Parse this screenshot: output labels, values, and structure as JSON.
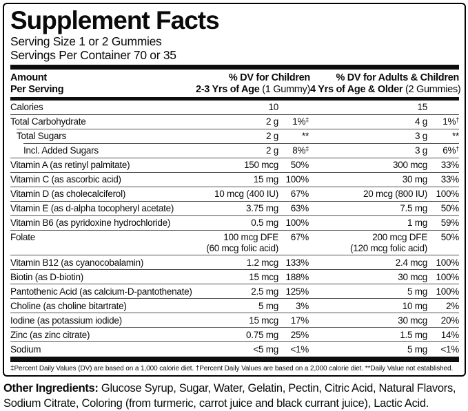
{
  "label": {
    "title": "Supplement Facts",
    "serving_size": "Serving Size 1 or 2 Gummies",
    "servings_per_container": "Servings Per Container 70 or 35",
    "header": {
      "col1_line1": "Amount",
      "col1_line2": "Per Serving",
      "col2_line1": "% DV for Children",
      "col2_line2_bold": "2-3 Yrs of Age",
      "col2_line2_reg": " (1 Gummy)",
      "col3_line1": "% DV for Adults & Children",
      "col3_line2_bold": "4 Yrs of Age & Older",
      "col3_line2_reg": " (2 Gummies)"
    },
    "rows": [
      {
        "name": "Calories",
        "a1": "10",
        "a1b": "",
        "p1": "",
        "s1": "",
        "a2": "15",
        "a2b": "",
        "p2": "",
        "s2": ""
      },
      {
        "name": "Total Carbohydrate",
        "a1": "2 g",
        "a1b": "",
        "p1": "1%",
        "s1": "‡",
        "a2": "4 g",
        "a2b": "",
        "p2": "1%",
        "s2": "†"
      },
      {
        "name": "Total Sugars",
        "a1": "2 g",
        "a1b": "",
        "p1": "**",
        "s1": "",
        "a2": "3 g",
        "a2b": "",
        "p2": "**",
        "s2": ""
      },
      {
        "name": "Incl. Added Sugars",
        "a1": "2 g",
        "a1b": "",
        "p1": "8%",
        "s1": "‡",
        "a2": "3 g",
        "a2b": "",
        "p2": "6%",
        "s2": "†"
      },
      {
        "name": "Vitamin A (as retinyl palmitate)",
        "a1": "150 mcg",
        "a1b": "",
        "p1": "50%",
        "s1": "",
        "a2": "300 mcg",
        "a2b": "",
        "p2": "33%",
        "s2": ""
      },
      {
        "name": "Vitamin C (as ascorbic acid)",
        "a1": "15 mg",
        "a1b": "",
        "p1": "100%",
        "s1": "",
        "a2": "30 mg",
        "a2b": "",
        "p2": "33%",
        "s2": ""
      },
      {
        "name": "Vitamin D (as cholecalciferol)",
        "a1": "10 mcg (400 IU)",
        "a1b": "",
        "p1": "67%",
        "s1": "",
        "a2": "20 mcg (800 IU)",
        "a2b": "",
        "p2": "100%",
        "s2": ""
      },
      {
        "name": "Vitamin E (as d-alpha tocopheryl acetate)",
        "a1": "3.75 mg",
        "a1b": "",
        "p1": "63%",
        "s1": "",
        "a2": "7.5 mg",
        "a2b": "",
        "p2": "50%",
        "s2": ""
      },
      {
        "name": "Vitamin B6 (as pyridoxine hydrochloride)",
        "a1": "0.5 mg",
        "a1b": "",
        "p1": "100%",
        "s1": "",
        "a2": "1 mg",
        "a2b": "",
        "p2": "59%",
        "s2": ""
      },
      {
        "name": "Folate",
        "a1": "100 mcg DFE",
        "a1b": "(60 mcg folic acid)",
        "p1": "67%",
        "s1": "",
        "a2": "200 mcg DFE",
        "a2b": "(120 mcg folic acid)",
        "p2": "50%",
        "s2": ""
      },
      {
        "name": "Vitamin B12 (as cyanocobalamin)",
        "a1": "1.2 mcg",
        "a1b": "",
        "p1": "133%",
        "s1": "",
        "a2": "2.4 mcg",
        "a2b": "",
        "p2": "100%",
        "s2": ""
      },
      {
        "name": "Biotin (as D-biotin)",
        "a1": "15 mcg",
        "a1b": "",
        "p1": "188%",
        "s1": "",
        "a2": "30 mcg",
        "a2b": "",
        "p2": "100%",
        "s2": ""
      },
      {
        "name": "Pantothenic Acid (as calcium-D-pantothenate)",
        "a1": "2.5 mg",
        "a1b": "",
        "p1": "125%",
        "s1": "",
        "a2": "5 mg",
        "a2b": "",
        "p2": "100%",
        "s2": ""
      },
      {
        "name": "Choline (as choline bitartrate)",
        "a1": "5 mg",
        "a1b": "",
        "p1": "3%",
        "s1": "",
        "a2": "10 mg",
        "a2b": "",
        "p2": "2%",
        "s2": ""
      },
      {
        "name": "Iodine (as potassium iodide)",
        "a1": "15 mcg",
        "a1b": "",
        "p1": "17%",
        "s1": "",
        "a2": "30 mcg",
        "a2b": "",
        "p2": "20%",
        "s2": ""
      },
      {
        "name": "Zinc (as zinc citrate)",
        "a1": "0.75 mg",
        "a1b": "",
        "p1": "25%",
        "s1": "",
        "a2": "1.5 mg",
        "a2b": "",
        "p2": "14%",
        "s2": ""
      },
      {
        "name": "Sodium",
        "a1": "<5 mg",
        "a1b": "",
        "p1": "<1%",
        "s1": "",
        "a2": "5 mg",
        "a2b": "",
        "p2": "<1%",
        "s2": ""
      }
    ],
    "footnote": "‡Percent Daily Values (DV) are based on a 1,000 calorie diet. †Percent Daily Values are based on a 2,000 calorie diet. **Daily Value not established.",
    "other_ingredients_label": "Other Ingredients:",
    "other_ingredients_text": " Glucose Syrup, Sugar, Water, Gelatin, Pectin, Citric Acid, Natural Flavors, Sodium Citrate, Coloring (from turmeric, carrot juice and black currant juice), Lactic Acid."
  },
  "colors": {
    "text": "#0a0a0a",
    "rule": "#4d4d4d",
    "bar": "#0d0d0d",
    "background": "#ffffff"
  }
}
